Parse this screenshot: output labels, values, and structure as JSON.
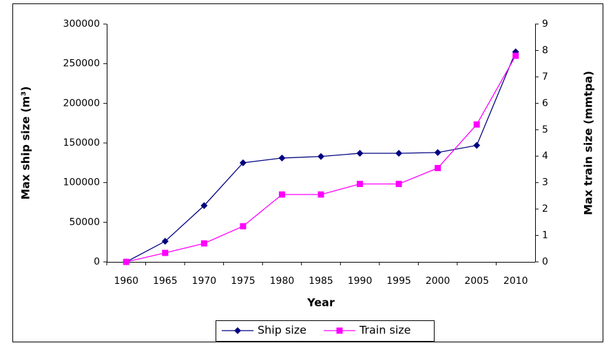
{
  "chart_data": {
    "type": "line",
    "x_label": "Year",
    "y_label": "Max ship size (m³)",
    "y2_label": "Max train size (mmtpa)",
    "categories": [
      "1960",
      "1965",
      "1970",
      "1975",
      "1980",
      "1985",
      "1990",
      "1995",
      "2000",
      "2005",
      "2010"
    ],
    "series": [
      {
        "name": "Ship size",
        "color": "#000080",
        "marker": "diamond",
        "values": [
          0,
          26000,
          71000,
          125000,
          131000,
          133000,
          137000,
          137000,
          138000,
          147000,
          265000
        ]
      },
      {
        "name": "Train size",
        "color": "#ff00ff",
        "marker": "square",
        "axis": "y2",
        "values": [
          0,
          0.34,
          0.7,
          1.35,
          2.55,
          2.55,
          2.95,
          2.95,
          3.55,
          5.2,
          7.8
        ]
      }
    ],
    "ylim": [
      0,
      300000
    ],
    "yticks": [
      0,
      50000,
      100000,
      150000,
      200000,
      250000,
      300000
    ],
    "y2lim": [
      0,
      9
    ],
    "y2ticks": [
      0,
      1,
      2,
      3,
      4,
      5,
      6,
      7,
      8,
      9
    ],
    "legend": "bottom",
    "grid": false
  }
}
